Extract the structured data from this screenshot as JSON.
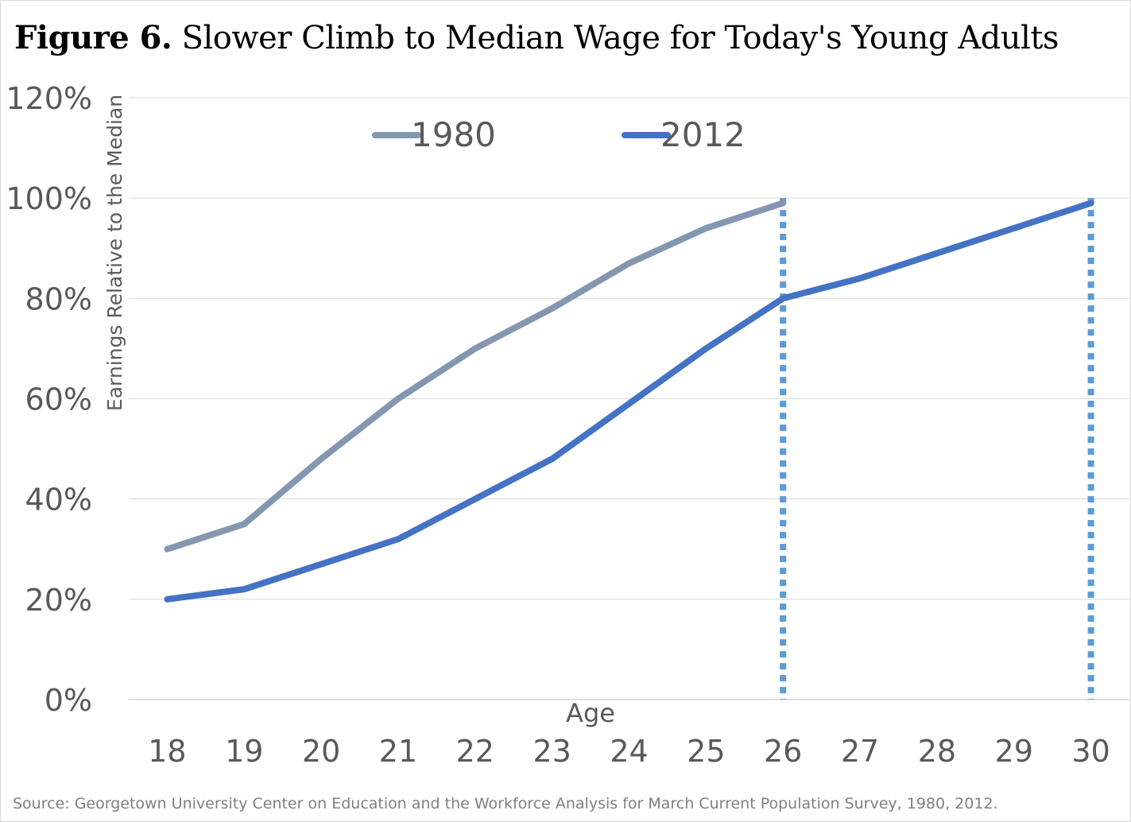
{
  "title": {
    "bold": "Figure 6.",
    "text": "Slower Climb to Median Wage for Today's Young Adults"
  },
  "source": "Source: Georgetown University Center on Education and the Workforce Analysis for March Current Population Survey, 1980, 2012.",
  "chart_data": {
    "type": "line",
    "title": "Figure 6. Slower Climb to Median Wage for Today's Young Adults",
    "xlabel": "Age",
    "ylabel": "Earnings Relative to the Median",
    "x": [
      18,
      19,
      20,
      21,
      22,
      23,
      24,
      25,
      26,
      27,
      28,
      29,
      30
    ],
    "ylim": [
      0,
      1.2
    ],
    "y_ticks": [
      0,
      0.2,
      0.4,
      0.6,
      0.8,
      1.0,
      1.2
    ],
    "y_tick_labels": [
      "0%",
      "20%",
      "40%",
      "60%",
      "80%",
      "100%",
      "120%"
    ],
    "grid": true,
    "legend_position": "top",
    "series": [
      {
        "name": "1980",
        "color": "#8497b0",
        "x": [
          18,
          19,
          20,
          21,
          22,
          23,
          24,
          25,
          26
        ],
        "values": [
          0.3,
          0.35,
          0.48,
          0.6,
          0.7,
          0.78,
          0.87,
          0.94,
          0.99
        ]
      },
      {
        "name": "2012",
        "color": "#4472c4",
        "x": [
          18,
          19,
          20,
          21,
          22,
          23,
          24,
          25,
          26,
          27,
          28,
          29,
          30
        ],
        "values": [
          0.2,
          0.22,
          0.27,
          0.32,
          0.4,
          0.48,
          0.59,
          0.7,
          0.8,
          0.84,
          0.89,
          0.94,
          0.99
        ]
      }
    ],
    "reference_lines": [
      {
        "x": 26,
        "color": "#5b9bd5"
      },
      {
        "x": 30,
        "color": "#5b9bd5"
      }
    ]
  }
}
